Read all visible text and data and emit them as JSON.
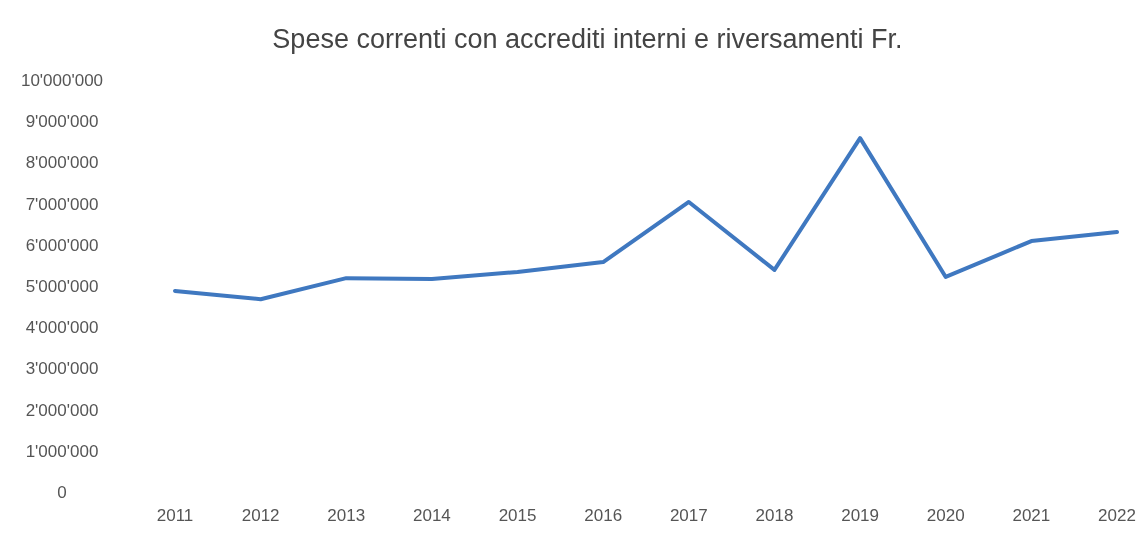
{
  "chart_data": {
    "type": "line",
    "title": "Spese correnti con accrediti interni e riversamenti Fr.",
    "categories": [
      "2011",
      "2012",
      "2013",
      "2014",
      "2015",
      "2016",
      "2017",
      "2018",
      "2019",
      "2020",
      "2021",
      "2022"
    ],
    "series": [
      {
        "color": "#3f78c0",
        "values": [
          4880000,
          4680000,
          5190000,
          5170000,
          5340000,
          5580000,
          7040000,
          5390000,
          8590000,
          5220000,
          6090000,
          6310000
        ]
      }
    ],
    "ylim": [
      0,
      10000000
    ],
    "yticks": [
      {
        "value": 0,
        "label": "0"
      },
      {
        "value": 1000000,
        "label": "1'000'000"
      },
      {
        "value": 2000000,
        "label": "2'000'000"
      },
      {
        "value": 3000000,
        "label": "3'000'000"
      },
      {
        "value": 4000000,
        "label": "4'000'000"
      },
      {
        "value": 5000000,
        "label": "5'000'000"
      },
      {
        "value": 6000000,
        "label": "6'000'000"
      },
      {
        "value": 7000000,
        "label": "7'000'000"
      },
      {
        "value": 8000000,
        "label": "8'000'000"
      },
      {
        "value": 9000000,
        "label": "9'000'000"
      },
      {
        "value": 10000000,
        "label": "10'000'000"
      }
    ],
    "marker": "none",
    "line_style": "solid"
  }
}
